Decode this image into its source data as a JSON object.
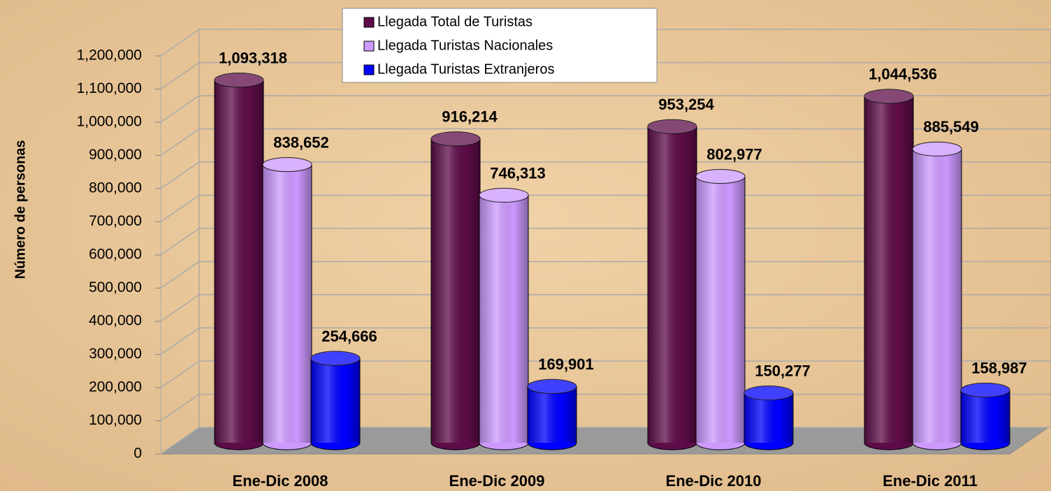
{
  "chart_data": {
    "type": "bar3d",
    "y_label": "Número de personas",
    "categories": [
      "Ene-Dic 2008",
      "Ene-Dic 2009",
      "Ene-Dic 2010",
      "Ene-Dic 2011"
    ],
    "series": [
      {
        "name": "Llegada Total de Turistas",
        "color": "#5e0c48",
        "values": [
          1093318,
          916214,
          953254,
          1044536
        ],
        "value_labels": [
          "1,093,318",
          "916,214",
          "953,254",
          "1,044,536"
        ]
      },
      {
        "name": "Llegada Turistas Nacionales",
        "color": "#cc99ff",
        "values": [
          838652,
          746313,
          802977,
          885549
        ],
        "value_labels": [
          "838,652",
          "746,313",
          "802,977",
          "885,549"
        ]
      },
      {
        "name": "Llegada Turistas Extranjeros",
        "color": "#0000ff",
        "values": [
          254666,
          169901,
          150277,
          158987
        ],
        "value_labels": [
          "254,666",
          "169,901",
          "150,277",
          "158,987"
        ]
      }
    ],
    "ylim": [
      0,
      1200000
    ],
    "yticks": [
      0,
      {
        "value": 100000,
        "label": "100,000"
      },
      {
        "value": 200000,
        "label": "200,000"
      },
      {
        "value": 300000,
        "label": "300,000"
      },
      {
        "value": 400000,
        "label": "400,000"
      },
      {
        "value": 500000,
        "label": "500,000"
      },
      {
        "value": 600000,
        "label": "600,000"
      },
      {
        "value": 700000,
        "label": "700,000"
      },
      {
        "value": 800000,
        "label": "800,000"
      },
      {
        "value": 900000,
        "label": "900,000"
      },
      {
        "value": 1000000,
        "label": "1,000,000"
      },
      {
        "value": 1100000,
        "label": "1,100,000"
      },
      {
        "value": 1200000,
        "label": "1,200,000"
      }
    ],
    "grid": true,
    "legend": "top"
  }
}
